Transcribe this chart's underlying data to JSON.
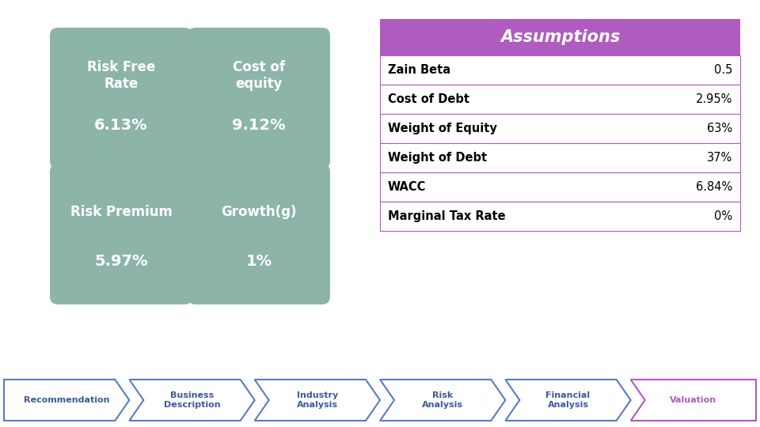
{
  "background_color": "#ffffff",
  "diamond_color": "#ab47bc",
  "box_color": "#8db4a8",
  "box_text_color": "#ffffff",
  "boxes": [
    {
      "label": "Risk Free\nRate",
      "value": "6.13%"
    },
    {
      "label": "Cost of\nequity",
      "value": "9.12%"
    },
    {
      "label": "Risk Premium",
      "value": "5.97%"
    },
    {
      "label": "Growth(g)",
      "value": "1%"
    }
  ],
  "table_title": "Assumptions",
  "table_title_bg": "#b05bbf",
  "table_title_color": "#ffffff",
  "table_rows": [
    {
      "label": "Zain Beta",
      "value": "0.5"
    },
    {
      "label": "Cost of Debt",
      "value": "2.95%"
    },
    {
      "label": "Weight of Equity",
      "value": "63%"
    },
    {
      "label": "Weight of Debt",
      "value": "37%"
    },
    {
      "label": "WACC",
      "value": "6.84%"
    },
    {
      "label": "Marginal Tax Rate",
      "value": "0%"
    }
  ],
  "table_border_color": "#b05bbf",
  "table_text_color": "#000000",
  "nav_items": [
    {
      "label": "Recommendation",
      "active": false
    },
    {
      "label": "Business\nDescription",
      "active": false
    },
    {
      "label": "Industry\nAnalysis",
      "active": false
    },
    {
      "label": "Risk\nAnalysis",
      "active": false
    },
    {
      "label": "Financial\nAnalysis",
      "active": false
    },
    {
      "label": "Valuation",
      "active": true
    }
  ],
  "nav_color_inactive": "#3c5a99",
  "nav_bg_inactive": "#ffffff",
  "nav_color_active": "#b05bbf",
  "nav_bg_active": "#ffffff",
  "nav_border_inactive": "#5b7bbf",
  "nav_border_active": "#b05bbf"
}
